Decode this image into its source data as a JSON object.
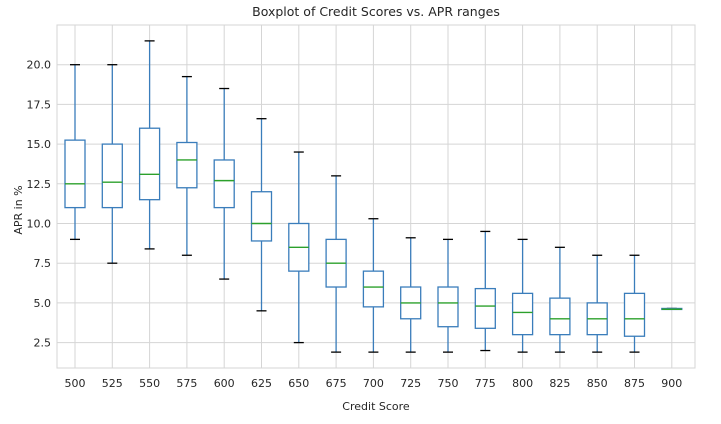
{
  "chart_data": {
    "type": "boxplot",
    "title": "Boxplot of Credit Scores vs. APR ranges",
    "xlabel": "Credit Score",
    "ylabel": "APR in %",
    "ylim": [
      0.9,
      22.5
    ],
    "yticks": [
      2.5,
      5.0,
      7.5,
      10.0,
      12.5,
      15.0,
      17.5,
      20.0
    ],
    "ytick_labels": [
      "2.5",
      "5.0",
      "7.5",
      "10.0",
      "12.5",
      "15.0",
      "17.5",
      "20.0"
    ],
    "grid": true,
    "categories": [
      "500",
      "525",
      "550",
      "575",
      "600",
      "625",
      "650",
      "675",
      "700",
      "725",
      "750",
      "775",
      "800",
      "825",
      "850",
      "875",
      "900"
    ],
    "boxes": [
      {
        "whisker_low": 9.0,
        "q1": 11.0,
        "median": 12.5,
        "q3": 15.25,
        "whisker_high": 20.0
      },
      {
        "whisker_low": 7.5,
        "q1": 11.0,
        "median": 12.6,
        "q3": 15.0,
        "whisker_high": 20.0
      },
      {
        "whisker_low": 8.4,
        "q1": 11.5,
        "median": 13.1,
        "q3": 16.0,
        "whisker_high": 21.5
      },
      {
        "whisker_low": 8.0,
        "q1": 12.25,
        "median": 14.0,
        "q3": 15.1,
        "whisker_high": 19.25
      },
      {
        "whisker_low": 6.5,
        "q1": 11.0,
        "median": 12.7,
        "q3": 14.0,
        "whisker_high": 18.5
      },
      {
        "whisker_low": 4.5,
        "q1": 8.9,
        "median": 10.0,
        "q3": 12.0,
        "whisker_high": 16.6
      },
      {
        "whisker_low": 2.5,
        "q1": 7.0,
        "median": 8.5,
        "q3": 10.0,
        "whisker_high": 14.5
      },
      {
        "whisker_low": 1.9,
        "q1": 6.0,
        "median": 7.5,
        "q3": 9.0,
        "whisker_high": 13.0
      },
      {
        "whisker_low": 1.9,
        "q1": 4.75,
        "median": 6.0,
        "q3": 7.0,
        "whisker_high": 10.3
      },
      {
        "whisker_low": 1.9,
        "q1": 4.0,
        "median": 5.0,
        "q3": 6.0,
        "whisker_high": 9.1
      },
      {
        "whisker_low": 1.9,
        "q1": 3.5,
        "median": 5.0,
        "q3": 6.0,
        "whisker_high": 9.0
      },
      {
        "whisker_low": 2.0,
        "q1": 3.4,
        "median": 4.8,
        "q3": 5.9,
        "whisker_high": 9.5
      },
      {
        "whisker_low": 1.9,
        "q1": 3.0,
        "median": 4.4,
        "q3": 5.6,
        "whisker_high": 9.0
      },
      {
        "whisker_low": 1.9,
        "q1": 3.0,
        "median": 4.0,
        "q3": 5.3,
        "whisker_high": 8.5
      },
      {
        "whisker_low": 1.9,
        "q1": 3.0,
        "median": 4.0,
        "q3": 5.0,
        "whisker_high": 8.0
      },
      {
        "whisker_low": 1.9,
        "q1": 2.9,
        "median": 4.0,
        "q3": 5.6,
        "whisker_high": 8.0
      },
      {
        "whisker_low": 4.6,
        "q1": 4.6,
        "median": 4.6,
        "q3": 4.65,
        "whisker_high": 4.65
      }
    ],
    "colors": {
      "box": "#3a7dbb",
      "whisker": "#3a7dbb",
      "cap": "#000000",
      "median": "#2ca02c",
      "grid": "#d5d5d5",
      "text": "#262626"
    }
  }
}
